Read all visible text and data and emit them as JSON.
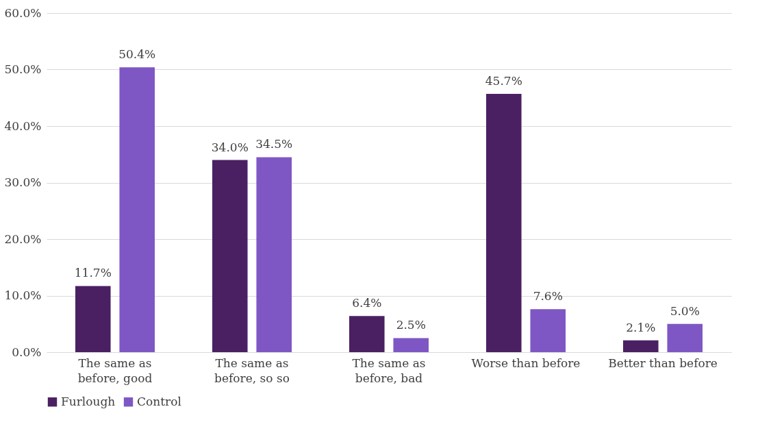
{
  "chart_data": {
    "type": "bar",
    "categories": [
      "The same as\nbefore, good",
      "The same as\nbefore, so so",
      "The same as\nbefore, bad",
      "Worse than before",
      "Better than before"
    ],
    "series": [
      {
        "name": "Furlough",
        "color": "#4b2063",
        "values": [
          11.7,
          34.0,
          6.4,
          45.7,
          2.1
        ],
        "value_labels": [
          "11.7%",
          "34.0%",
          "6.4%",
          "45.7%",
          "2.1%"
        ]
      },
      {
        "name": "Control",
        "color": "#7e57c5",
        "values": [
          50.4,
          34.5,
          2.5,
          7.6,
          5.0
        ],
        "value_labels": [
          "50.4%",
          "34.5%",
          "2.5%",
          "7.6%",
          "5.0%"
        ]
      }
    ],
    "ylim": [
      0,
      60
    ],
    "yticks": [
      {
        "value": 0,
        "label": "0.0%"
      },
      {
        "value": 10,
        "label": "10.0%"
      },
      {
        "value": 20,
        "label": "20.0%"
      },
      {
        "value": 30,
        "label": "30.0%"
      },
      {
        "value": 40,
        "label": "40.0%"
      },
      {
        "value": 50,
        "label": "50.0%"
      },
      {
        "value": 60,
        "label": "60.0%"
      }
    ],
    "grid": "y",
    "legend": "bottom"
  }
}
